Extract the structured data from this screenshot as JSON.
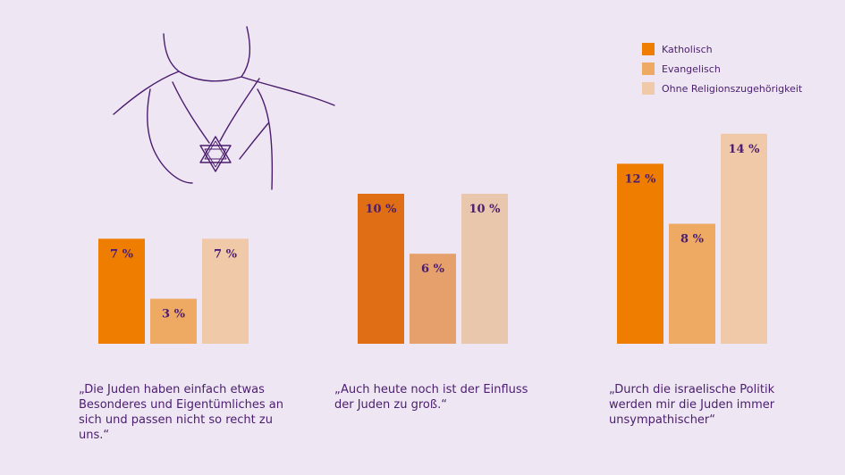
{
  "legend": [
    {
      "label": "Katholisch",
      "color": "#ee7d00"
    },
    {
      "label": "Evangelisch",
      "color": "#eeaa62"
    },
    {
      "label": "Ohne Religionszugehörigkeit",
      "color": "#f0c9a8"
    }
  ],
  "illustration": {
    "icon": "star-of-david-necklace-icon"
  },
  "chart_data": [
    {
      "type": "bar",
      "categories": [
        "Katholisch",
        "Evangelisch",
        "Ohne Religionszugehörigkeit"
      ],
      "values": [
        7,
        3,
        7
      ],
      "value_labels": [
        "7 %",
        "3 %",
        "7 %"
      ],
      "colors": [
        "#ee7d00",
        "#eeaa62",
        "#f0c9a8"
      ],
      "ylim": [
        0,
        14
      ],
      "caption": "„Die Juden haben einfach etwas Besonderes und Eigentümliches an sich und passen nicht so recht zu uns.“"
    },
    {
      "type": "bar",
      "categories": [
        "Katholisch",
        "Evangelisch",
        "Ohne Religionszugehörigkeit"
      ],
      "values": [
        10,
        6,
        10
      ],
      "value_labels": [
        "10 %",
        "6 %",
        "10 %"
      ],
      "colors": [
        "#e06e14",
        "#e6a06c",
        "#e8c7ac"
      ],
      "ylim": [
        0,
        14
      ],
      "caption": "„Auch heute noch ist der Einfluss der Juden zu groß.“"
    },
    {
      "type": "bar",
      "categories": [
        "Katholisch",
        "Evangelisch",
        "Ohne Religionszugehörigkeit"
      ],
      "values": [
        12,
        8,
        14
      ],
      "value_labels": [
        "12 %",
        "8 %",
        "14 %"
      ],
      "colors": [
        "#ee7d00",
        "#eeaa62",
        "#f0c9a8"
      ],
      "ylim": [
        0,
        14
      ],
      "caption": "„Durch die israelische Politik werden mir die Juden immer unsympathischer“"
    }
  ]
}
